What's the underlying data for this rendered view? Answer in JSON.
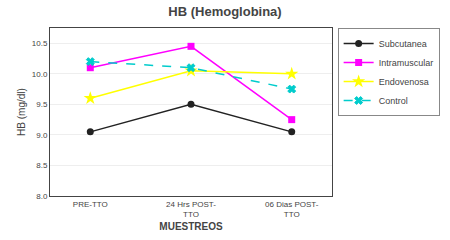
{
  "chart_data": {
    "type": "line",
    "title": "HB (Hemoglobina)",
    "x_label": "MUESTREOS",
    "y_label": "HB (mg/dl)",
    "categories": [
      "PRE-TTO",
      "24 Hrs POST-\nTTO",
      "06 Dias POST-\nTTO"
    ],
    "series": [
      {
        "name": "Subcutanea",
        "color": "#222222",
        "marker": "circle",
        "line_style": "solid",
        "values": [
          9.05,
          9.5,
          9.05
        ]
      },
      {
        "name": "Intramuscular",
        "color": "#ff00ff",
        "marker": "square",
        "line_style": "solid",
        "values": [
          10.1,
          10.45,
          9.25
        ]
      },
      {
        "name": "Endovenosa",
        "color": "#ffff00",
        "marker": "star",
        "line_style": "solid",
        "values": [
          9.6,
          10.05,
          10.0
        ]
      },
      {
        "name": "Control",
        "color": "#00cccc",
        "marker": "x",
        "line_style": "dashed",
        "values": [
          10.2,
          10.1,
          9.75
        ]
      }
    ],
    "ylim": [
      8.0,
      10.75
    ],
    "yticks": [
      {
        "value": 8.0,
        "label": "8.0"
      },
      8.5,
      {
        "value": 9.0,
        "label": "9.0"
      },
      9.5,
      {
        "value": 10.0,
        "label": "10.0"
      },
      10.5
    ],
    "grid": true,
    "legend": "right"
  }
}
